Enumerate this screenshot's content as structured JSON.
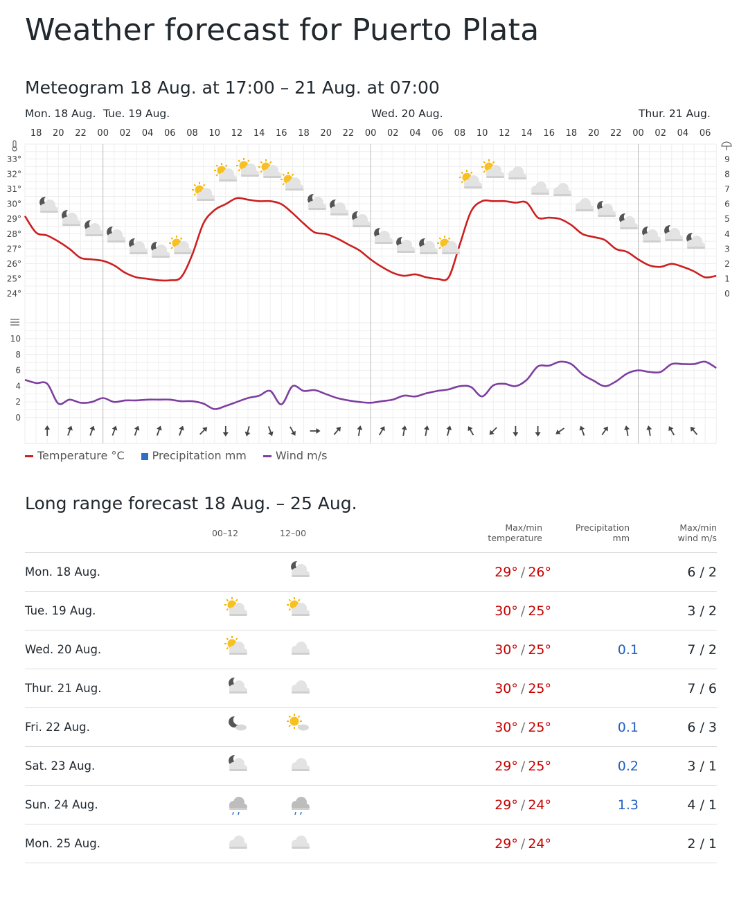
{
  "page_title": "Weather forecast for Puerto Plata",
  "meteogram": {
    "title": "Meteogram 18 Aug. at 17:00 – 21 Aug. at 07:00",
    "day_labels": [
      "Mon. 18 Aug.",
      "Tue. 19 Aug.",
      "Wed. 20 Aug.",
      "Thur. 21 Aug."
    ],
    "legend": {
      "temperature": "Temperature °C",
      "precipitation": "Precipitation mm",
      "wind": "Wind m/s"
    },
    "colors": {
      "temperature": "#cc1f1f",
      "precipitation": "#2f6fc4",
      "wind": "#7e3fa0"
    }
  },
  "chart_data": {
    "type": "line",
    "start_hour": 17,
    "hour_ticks": [
      "18",
      "20",
      "22",
      "00",
      "02",
      "04",
      "06",
      "08",
      "10",
      "12",
      "14",
      "16",
      "18",
      "20",
      "22",
      "00",
      "02",
      "04",
      "06",
      "08",
      "10",
      "12",
      "14",
      "16",
      "18",
      "20",
      "22",
      "00",
      "02",
      "04",
      "06"
    ],
    "temp_axis_ticks": [
      "33°",
      "32°",
      "31°",
      "30°",
      "29°",
      "28°",
      "27°",
      "26°",
      "25°",
      "24°"
    ],
    "precip_axis_ticks": [
      "9",
      "8",
      "7",
      "6",
      "5",
      "4",
      "3",
      "2",
      "1",
      "0"
    ],
    "wind_axis_ticks": [
      "10",
      "8",
      "6",
      "4",
      "2",
      "0"
    ],
    "temp_range": [
      24,
      33
    ],
    "wind_range": [
      0,
      10
    ],
    "temperature": [
      29.2,
      28.1,
      27.9,
      27.5,
      27.0,
      26.4,
      26.3,
      26.2,
      25.9,
      25.4,
      25.1,
      25.0,
      24.9,
      24.9,
      25.1,
      26.6,
      28.7,
      29.6,
      30.0,
      30.4,
      30.3,
      30.2,
      30.2,
      30.0,
      29.4,
      28.7,
      28.1,
      28.0,
      27.7,
      27.3,
      26.9,
      26.3,
      25.8,
      25.4,
      25.2,
      25.3,
      25.1,
      25.0,
      25.1,
      27.3,
      29.5,
      30.2,
      30.2,
      30.2,
      30.1,
      30.1,
      29.1,
      29.1,
      29.0,
      28.6,
      28.0,
      27.8,
      27.6,
      27.0,
      26.8,
      26.3,
      25.9,
      25.8,
      26.0,
      25.8,
      25.5,
      25.1,
      25.2
    ],
    "wind": [
      4.8,
      4.4,
      4.3,
      1.8,
      2.3,
      1.9,
      2.0,
      2.5,
      2.0,
      2.2,
      2.2,
      2.3,
      2.3,
      2.3,
      2.1,
      2.1,
      1.8,
      1.1,
      1.5,
      2.0,
      2.5,
      2.8,
      3.4,
      1.7,
      4.0,
      3.4,
      3.5,
      3.0,
      2.5,
      2.2,
      2.0,
      1.9,
      2.1,
      2.3,
      2.8,
      2.7,
      3.1,
      3.4,
      3.6,
      4.0,
      3.9,
      2.7,
      4.1,
      4.3,
      4.0,
      4.8,
      6.5,
      6.6,
      7.1,
      6.8,
      5.5,
      4.7,
      4.0,
      4.6,
      5.6,
      6.0,
      5.8,
      5.8,
      6.8,
      6.8,
      6.8,
      7.1,
      6.3
    ],
    "symbols": [
      "night",
      "night",
      "night",
      "night",
      "night",
      "night",
      "day",
      "day",
      "day",
      "day",
      "day",
      "day",
      "night",
      "night",
      "night",
      "night",
      "night",
      "night",
      "day",
      "day",
      "day",
      "cloud",
      "cloud",
      "cloud",
      "cloud",
      "night",
      "night",
      "night",
      "night",
      "night"
    ],
    "wind_direction_deg": [
      0,
      20,
      20,
      20,
      20,
      20,
      20,
      45,
      180,
      195,
      160,
      150,
      90,
      40,
      10,
      30,
      10,
      10,
      15,
      -30,
      225,
      180,
      180,
      235,
      -20,
      35,
      -10,
      -10,
      -30,
      -40
    ]
  },
  "long_range": {
    "title": "Long range forecast 18 Aug. – 25 Aug.",
    "headers": {
      "p1": "00–12",
      "p2": "12–00",
      "temp": [
        "Max/min",
        "temperature"
      ],
      "precip": [
        "Precipitation",
        "mm"
      ],
      "wind": [
        "Max/min",
        "wind m/s"
      ]
    },
    "rows": [
      {
        "day": "Mon. 18 Aug.",
        "icon1": "",
        "icon2": "night",
        "max": "29°",
        "min": "26°",
        "precip": "",
        "wind": "6 / 2"
      },
      {
        "day": "Tue. 19 Aug.",
        "icon1": "day",
        "icon2": "day",
        "max": "30°",
        "min": "25°",
        "precip": "",
        "wind": "3 / 2"
      },
      {
        "day": "Wed. 20 Aug.",
        "icon1": "day",
        "icon2": "cloud",
        "max": "30°",
        "min": "25°",
        "precip": "0.1",
        "wind": "7 / 2"
      },
      {
        "day": "Thur. 21 Aug.",
        "icon1": "night",
        "icon2": "cloud",
        "max": "30°",
        "min": "25°",
        "precip": "",
        "wind": "7 / 6"
      },
      {
        "day": "Fri. 22 Aug.",
        "icon1": "night-fair",
        "icon2": "sun-fair",
        "max": "30°",
        "min": "25°",
        "precip": "0.1",
        "wind": "6 / 3"
      },
      {
        "day": "Sat. 23 Aug.",
        "icon1": "night",
        "icon2": "cloud",
        "max": "29°",
        "min": "25°",
        "precip": "0.2",
        "wind": "3 / 1"
      },
      {
        "day": "Sun. 24 Aug.",
        "icon1": "rain",
        "icon2": "rain",
        "max": "29°",
        "min": "24°",
        "precip": "1.3",
        "wind": "4 / 1"
      },
      {
        "day": "Mon. 25 Aug.",
        "icon1": "cloud",
        "icon2": "cloud",
        "max": "29°",
        "min": "24°",
        "precip": "",
        "wind": "2 / 1"
      }
    ]
  }
}
